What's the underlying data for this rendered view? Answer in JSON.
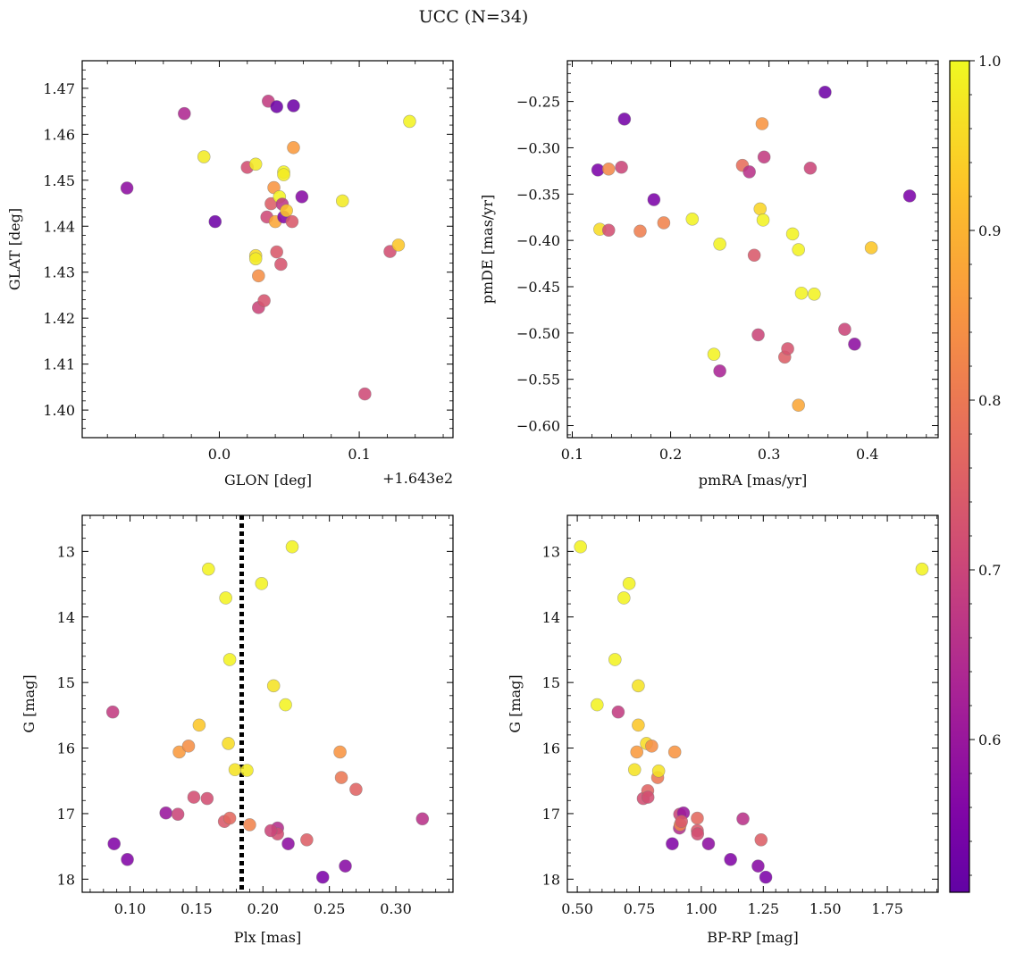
{
  "figure": {
    "title": "UCC (N=34)"
  },
  "colorbar": {
    "colormap": "plasma",
    "range": [
      0.51,
      1.0
    ],
    "ticks": [
      0.6,
      0.7,
      0.8,
      0.9,
      1.0
    ],
    "tick_labels": [
      "0.6",
      "0.7",
      "0.8",
      "0.9",
      "1.0"
    ]
  },
  "chart_data": [
    {
      "type": "scatter",
      "xlabel": "GLON [deg]",
      "ylabel": "GLAT [deg]",
      "x_offset_label": "+1.643e2",
      "xlim": [
        -0.098,
        0.167
      ],
      "ylim": [
        1.394,
        1.476
      ],
      "invert_y": false,
      "xticks": [
        0.0,
        0.1
      ],
      "xtick_labels": [
        "0.0",
        "0.1"
      ],
      "yticks": [
        1.4,
        1.41,
        1.42,
        1.43,
        1.44,
        1.45,
        1.46,
        1.47
      ],
      "ytick_labels": [
        "1.40",
        "1.41",
        "1.42",
        "1.43",
        "1.44",
        "1.45",
        "1.46",
        "1.47"
      ],
      "points": [
        {
          "x": -0.066,
          "y": 1.4483,
          "c": 0.58
        },
        {
          "x": -0.025,
          "y": 1.4645,
          "c": 0.64
        },
        {
          "x": -0.011,
          "y": 1.4551,
          "c": 0.98
        },
        {
          "x": -0.003,
          "y": 1.441,
          "c": 0.53
        },
        {
          "x": 0.02,
          "y": 1.4528,
          "c": 0.72
        },
        {
          "x": 0.026,
          "y": 1.4535,
          "c": 0.98
        },
        {
          "x": 0.026,
          "y": 1.4336,
          "c": 0.96
        },
        {
          "x": 0.026,
          "y": 1.4329,
          "c": 0.98
        },
        {
          "x": 0.028,
          "y": 1.4292,
          "c": 0.84
        },
        {
          "x": 0.028,
          "y": 1.4223,
          "c": 0.7
        },
        {
          "x": 0.032,
          "y": 1.4238,
          "c": 0.73
        },
        {
          "x": 0.034,
          "y": 1.442,
          "c": 0.71
        },
        {
          "x": 0.035,
          "y": 1.4672,
          "c": 0.68
        },
        {
          "x": 0.037,
          "y": 1.4449,
          "c": 0.75
        },
        {
          "x": 0.039,
          "y": 1.4484,
          "c": 0.85
        },
        {
          "x": 0.04,
          "y": 1.441,
          "c": 0.88
        },
        {
          "x": 0.041,
          "y": 1.4344,
          "c": 0.74
        },
        {
          "x": 0.041,
          "y": 1.466,
          "c": 0.53
        },
        {
          "x": 0.043,
          "y": 1.4464,
          "c": 0.99
        },
        {
          "x": 0.044,
          "y": 1.4317,
          "c": 0.73
        },
        {
          "x": 0.045,
          "y": 1.4448,
          "c": 0.67
        },
        {
          "x": 0.046,
          "y": 1.4518,
          "c": 0.99
        },
        {
          "x": 0.046,
          "y": 1.4512,
          "c": 0.98
        },
        {
          "x": 0.046,
          "y": 1.442,
          "c": 0.56
        },
        {
          "x": 0.048,
          "y": 1.4434,
          "c": 0.93
        },
        {
          "x": 0.052,
          "y": 1.441,
          "c": 0.74
        },
        {
          "x": 0.053,
          "y": 1.4662,
          "c": 0.53
        },
        {
          "x": 0.053,
          "y": 1.4571,
          "c": 0.86
        },
        {
          "x": 0.059,
          "y": 1.4464,
          "c": 0.57
        },
        {
          "x": 0.088,
          "y": 1.4455,
          "c": 0.98
        },
        {
          "x": 0.104,
          "y": 1.4035,
          "c": 0.71
        },
        {
          "x": 0.122,
          "y": 1.4345,
          "c": 0.72
        },
        {
          "x": 0.128,
          "y": 1.4359,
          "c": 0.93
        },
        {
          "x": 0.136,
          "y": 1.4628,
          "c": 0.99
        }
      ]
    },
    {
      "type": "scatter",
      "xlabel": "pmRA [mas/yr]",
      "ylabel": "pmDE [mas/yr]",
      "xlim": [
        0.095,
        0.472
      ],
      "ylim": [
        -0.613,
        -0.206
      ],
      "invert_y": false,
      "xticks": [
        0.1,
        0.2,
        0.3,
        0.4
      ],
      "xtick_labels": [
        "0.1",
        "0.2",
        "0.3",
        "0.4"
      ],
      "yticks": [
        -0.6,
        -0.55,
        -0.5,
        -0.45,
        -0.4,
        -0.35,
        -0.3,
        -0.25
      ],
      "ytick_labels": [
        "−0.60",
        "−0.55",
        "−0.50",
        "−0.45",
        "−0.40",
        "−0.35",
        "−0.30",
        "−0.25"
      ],
      "points": [
        {
          "x": 0.126,
          "y": -0.324,
          "c": 0.55
        },
        {
          "x": 0.128,
          "y": -0.388,
          "c": 0.96
        },
        {
          "x": 0.137,
          "y": -0.323,
          "c": 0.83
        },
        {
          "x": 0.137,
          "y": -0.389,
          "c": 0.72
        },
        {
          "x": 0.15,
          "y": -0.321,
          "c": 0.7
        },
        {
          "x": 0.153,
          "y": -0.269,
          "c": 0.54
        },
        {
          "x": 0.169,
          "y": -0.39,
          "c": 0.81
        },
        {
          "x": 0.183,
          "y": -0.356,
          "c": 0.55
        },
        {
          "x": 0.193,
          "y": -0.381,
          "c": 0.82
        },
        {
          "x": 0.222,
          "y": -0.377,
          "c": 0.99
        },
        {
          "x": 0.244,
          "y": -0.523,
          "c": 0.99
        },
        {
          "x": 0.25,
          "y": -0.404,
          "c": 0.99
        },
        {
          "x": 0.25,
          "y": -0.541,
          "c": 0.63
        },
        {
          "x": 0.273,
          "y": -0.319,
          "c": 0.78
        },
        {
          "x": 0.28,
          "y": -0.326,
          "c": 0.66
        },
        {
          "x": 0.285,
          "y": -0.416,
          "c": 0.74
        },
        {
          "x": 0.289,
          "y": -0.502,
          "c": 0.7
        },
        {
          "x": 0.291,
          "y": -0.366,
          "c": 0.95
        },
        {
          "x": 0.293,
          "y": -0.274,
          "c": 0.85
        },
        {
          "x": 0.294,
          "y": -0.378,
          "c": 0.99
        },
        {
          "x": 0.295,
          "y": -0.31,
          "c": 0.68
        },
        {
          "x": 0.316,
          "y": -0.526,
          "c": 0.75
        },
        {
          "x": 0.319,
          "y": -0.517,
          "c": 0.73
        },
        {
          "x": 0.324,
          "y": -0.393,
          "c": 0.99
        },
        {
          "x": 0.33,
          "y": -0.41,
          "c": 0.99
        },
        {
          "x": 0.33,
          "y": -0.578,
          "c": 0.88
        },
        {
          "x": 0.333,
          "y": -0.457,
          "c": 0.99
        },
        {
          "x": 0.342,
          "y": -0.322,
          "c": 0.7
        },
        {
          "x": 0.346,
          "y": -0.458,
          "c": 0.99
        },
        {
          "x": 0.357,
          "y": -0.24,
          "c": 0.53
        },
        {
          "x": 0.377,
          "y": -0.496,
          "c": 0.7
        },
        {
          "x": 0.387,
          "y": -0.512,
          "c": 0.58
        },
        {
          "x": 0.404,
          "y": -0.408,
          "c": 0.93
        },
        {
          "x": 0.443,
          "y": -0.352,
          "c": 0.55
        }
      ]
    },
    {
      "type": "scatter",
      "xlabel": "Plx [mas]",
      "ylabel": "G [mag]",
      "xlim": [
        0.064,
        0.343
      ],
      "ylim": [
        12.45,
        18.2
      ],
      "invert_y": true,
      "vline": {
        "x": 0.184,
        "style": "dotted"
      },
      "xticks": [
        0.1,
        0.15,
        0.2,
        0.25,
        0.3
      ],
      "xtick_labels": [
        "0.10",
        "0.15",
        "0.20",
        "0.25",
        "0.30"
      ],
      "yticks": [
        13,
        14,
        15,
        16,
        17,
        18
      ],
      "ytick_labels": [
        "13",
        "14",
        "15",
        "16",
        "17",
        "18"
      ],
      "points": [
        {
          "x": 0.087,
          "y": 15.45,
          "c": 0.68
        },
        {
          "x": 0.088,
          "y": 17.46,
          "c": 0.56
        },
        {
          "x": 0.098,
          "y": 17.7,
          "c": 0.56
        },
        {
          "x": 0.127,
          "y": 16.99,
          "c": 0.6
        },
        {
          "x": 0.136,
          "y": 17.01,
          "c": 0.7
        },
        {
          "x": 0.137,
          "y": 16.06,
          "c": 0.86
        },
        {
          "x": 0.144,
          "y": 15.97,
          "c": 0.84
        },
        {
          "x": 0.148,
          "y": 16.75,
          "c": 0.72
        },
        {
          "x": 0.152,
          "y": 15.65,
          "c": 0.93
        },
        {
          "x": 0.158,
          "y": 16.77,
          "c": 0.72
        },
        {
          "x": 0.159,
          "y": 13.27,
          "c": 0.99
        },
        {
          "x": 0.171,
          "y": 17.12,
          "c": 0.74
        },
        {
          "x": 0.172,
          "y": 13.71,
          "c": 0.99
        },
        {
          "x": 0.174,
          "y": 15.93,
          "c": 0.96
        },
        {
          "x": 0.175,
          "y": 14.65,
          "c": 0.99
        },
        {
          "x": 0.175,
          "y": 17.07,
          "c": 0.77
        },
        {
          "x": 0.179,
          "y": 16.33,
          "c": 0.97
        },
        {
          "x": 0.188,
          "y": 16.34,
          "c": 0.98
        },
        {
          "x": 0.19,
          "y": 17.17,
          "c": 0.82
        },
        {
          "x": 0.199,
          "y": 13.49,
          "c": 0.99
        },
        {
          "x": 0.208,
          "y": 15.05,
          "c": 0.97
        },
        {
          "x": 0.211,
          "y": 17.22,
          "c": 0.65
        },
        {
          "x": 0.211,
          "y": 17.31,
          "c": 0.72
        },
        {
          "x": 0.217,
          "y": 15.34,
          "c": 0.99
        },
        {
          "x": 0.219,
          "y": 17.46,
          "c": 0.58
        },
        {
          "x": 0.222,
          "y": 12.93,
          "c": 0.99
        },
        {
          "x": 0.233,
          "y": 17.4,
          "c": 0.75
        },
        {
          "x": 0.245,
          "y": 17.97,
          "c": 0.55
        },
        {
          "x": 0.258,
          "y": 16.06,
          "c": 0.85
        },
        {
          "x": 0.259,
          "y": 16.45,
          "c": 0.8
        },
        {
          "x": 0.262,
          "y": 17.8,
          "c": 0.57
        },
        {
          "x": 0.27,
          "y": 16.63,
          "c": 0.76
        },
        {
          "x": 0.32,
          "y": 17.08,
          "c": 0.66
        },
        {
          "x": 0.206,
          "y": 17.26,
          "c": 0.7
        }
      ]
    },
    {
      "type": "scatter",
      "xlabel": "BP-RP [mag]",
      "ylabel": "G [mag]",
      "xlim": [
        0.46,
        1.955
      ],
      "ylim": [
        12.45,
        18.2
      ],
      "invert_y": true,
      "xticks": [
        0.5,
        0.75,
        1.0,
        1.25,
        1.5,
        1.75
      ],
      "xtick_labels": [
        "0.50",
        "0.75",
        "1.00",
        "1.25",
        "1.50",
        "1.75"
      ],
      "yticks": [
        13,
        14,
        15,
        16,
        17,
        18
      ],
      "ytick_labels": [
        "13",
        "14",
        "15",
        "16",
        "17",
        "18"
      ],
      "points": [
        {
          "x": 0.513,
          "y": 12.93,
          "c": 0.99
        },
        {
          "x": 0.58,
          "y": 15.34,
          "c": 0.99
        },
        {
          "x": 0.652,
          "y": 14.65,
          "c": 0.99
        },
        {
          "x": 0.665,
          "y": 15.45,
          "c": 0.68
        },
        {
          "x": 0.688,
          "y": 13.71,
          "c": 0.99
        },
        {
          "x": 0.709,
          "y": 13.49,
          "c": 0.99
        },
        {
          "x": 0.731,
          "y": 16.33,
          "c": 0.97
        },
        {
          "x": 0.74,
          "y": 16.06,
          "c": 0.86
        },
        {
          "x": 0.746,
          "y": 15.05,
          "c": 0.97
        },
        {
          "x": 0.746,
          "y": 15.65,
          "c": 0.93
        },
        {
          "x": 0.766,
          "y": 16.77,
          "c": 0.72
        },
        {
          "x": 0.779,
          "y": 15.93,
          "c": 0.96
        },
        {
          "x": 0.784,
          "y": 16.65,
          "c": 0.76
        },
        {
          "x": 0.785,
          "y": 16.75,
          "c": 0.72
        },
        {
          "x": 0.8,
          "y": 15.97,
          "c": 0.84
        },
        {
          "x": 0.824,
          "y": 16.45,
          "c": 0.8
        },
        {
          "x": 0.828,
          "y": 16.35,
          "c": 0.97
        },
        {
          "x": 0.883,
          "y": 17.46,
          "c": 0.56
        },
        {
          "x": 0.893,
          "y": 16.06,
          "c": 0.85
        },
        {
          "x": 0.912,
          "y": 17.22,
          "c": 0.65
        },
        {
          "x": 0.913,
          "y": 17.01,
          "c": 0.7
        },
        {
          "x": 0.915,
          "y": 17.17,
          "c": 0.82
        },
        {
          "x": 0.928,
          "y": 16.99,
          "c": 0.6
        },
        {
          "x": 0.984,
          "y": 17.07,
          "c": 0.77
        },
        {
          "x": 0.984,
          "y": 17.26,
          "c": 0.74
        },
        {
          "x": 0.985,
          "y": 17.31,
          "c": 0.72
        },
        {
          "x": 1.029,
          "y": 17.46,
          "c": 0.58
        },
        {
          "x": 1.118,
          "y": 17.7,
          "c": 0.56
        },
        {
          "x": 1.168,
          "y": 17.08,
          "c": 0.66
        },
        {
          "x": 1.229,
          "y": 17.8,
          "c": 0.57
        },
        {
          "x": 1.241,
          "y": 17.4,
          "c": 0.75
        },
        {
          "x": 1.26,
          "y": 17.97,
          "c": 0.55
        },
        {
          "x": 1.89,
          "y": 13.27,
          "c": 0.99
        },
        {
          "x": 0.92,
          "y": 17.12,
          "c": 0.74
        }
      ]
    }
  ]
}
